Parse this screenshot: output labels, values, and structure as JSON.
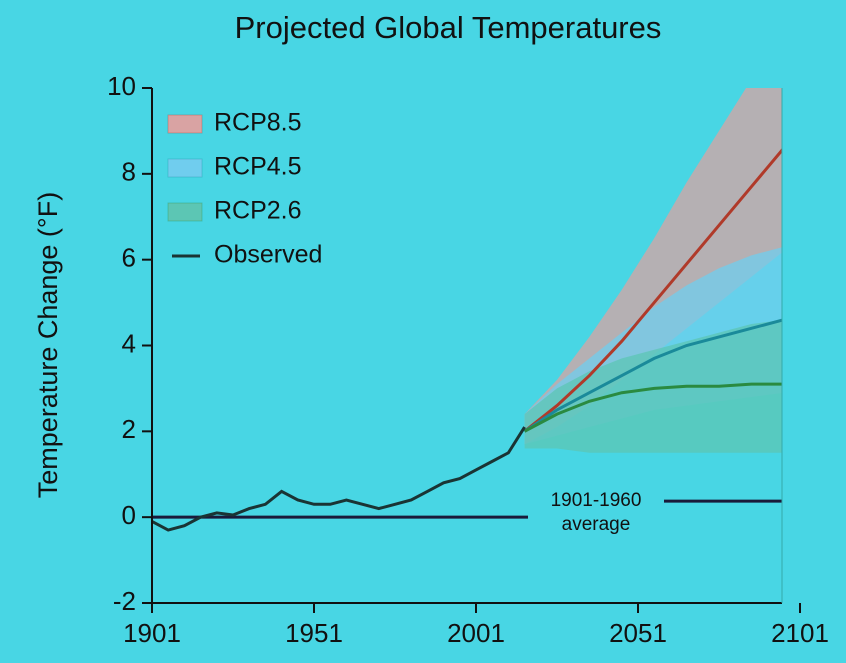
{
  "chart_data": {
    "type": "line",
    "title": "Projected Global Temperatures",
    "y_label": "Temperature Change (°F)",
    "xlim": [
      1901,
      2101
    ],
    "xticks": [
      1901,
      1951,
      2001,
      2051,
      2101
    ],
    "ylim": [
      -2,
      10
    ],
    "yticks": [
      -2,
      0,
      2,
      4,
      6,
      8,
      10
    ],
    "reference_line": 0,
    "annotation_lines": [
      "1901-1960",
      "average"
    ],
    "legend": "upper left",
    "series": [
      {
        "name": "RCP8.5",
        "color": "#b03a2a",
        "band_color": "#d9a3a3",
        "x": [
          2016,
          2026,
          2036,
          2046,
          2056,
          2066,
          2076,
          2086,
          2096
        ],
        "values": [
          2.0,
          2.6,
          3.3,
          4.1,
          5.0,
          5.9,
          6.8,
          7.7,
          8.6
        ],
        "upper": [
          2.4,
          3.2,
          4.2,
          5.3,
          6.5,
          7.8,
          9.0,
          10.2,
          11.2
        ],
        "lower": [
          1.7,
          2.1,
          2.6,
          3.2,
          3.8,
          4.4,
          5.0,
          5.6,
          6.2
        ]
      },
      {
        "name": "RCP4.5",
        "color": "#1a8a9a",
        "band_color": "#70cdee",
        "x": [
          2016,
          2026,
          2036,
          2046,
          2056,
          2066,
          2076,
          2086,
          2096
        ],
        "values": [
          2.0,
          2.5,
          2.9,
          3.3,
          3.7,
          4.0,
          4.2,
          4.4,
          4.6
        ],
        "upper": [
          2.4,
          3.1,
          3.7,
          4.3,
          4.9,
          5.4,
          5.8,
          6.1,
          6.3
        ],
        "lower": [
          1.7,
          1.9,
          2.1,
          2.3,
          2.5,
          2.6,
          2.7,
          2.8,
          2.9
        ]
      },
      {
        "name": "RCP2.6",
        "color": "#2a8a40",
        "band_color": "#5cc6b4",
        "x": [
          2016,
          2026,
          2036,
          2046,
          2056,
          2066,
          2076,
          2086,
          2096
        ],
        "values": [
          2.0,
          2.4,
          2.7,
          2.9,
          3.0,
          3.05,
          3.05,
          3.1,
          3.1
        ],
        "upper": [
          2.4,
          3.0,
          3.4,
          3.7,
          3.9,
          4.1,
          4.3,
          4.5,
          4.6
        ],
        "lower": [
          1.6,
          1.6,
          1.5,
          1.5,
          1.5,
          1.5,
          1.5,
          1.5,
          1.5
        ]
      },
      {
        "name": "Observed",
        "color": "#1a3434",
        "x": [
          1901,
          1906,
          1911,
          1916,
          1921,
          1926,
          1931,
          1936,
          1941,
          1946,
          1951,
          1956,
          1961,
          1966,
          1971,
          1976,
          1981,
          1986,
          1991,
          1996,
          2001,
          2006,
          2011,
          2016
        ],
        "values": [
          -0.1,
          -0.3,
          -0.2,
          0.0,
          0.1,
          0.05,
          0.2,
          0.3,
          0.6,
          0.4,
          0.3,
          0.3,
          0.4,
          0.3,
          0.2,
          0.3,
          0.4,
          0.6,
          0.8,
          0.9,
          1.1,
          1.3,
          1.5,
          2.1
        ]
      }
    ]
  }
}
